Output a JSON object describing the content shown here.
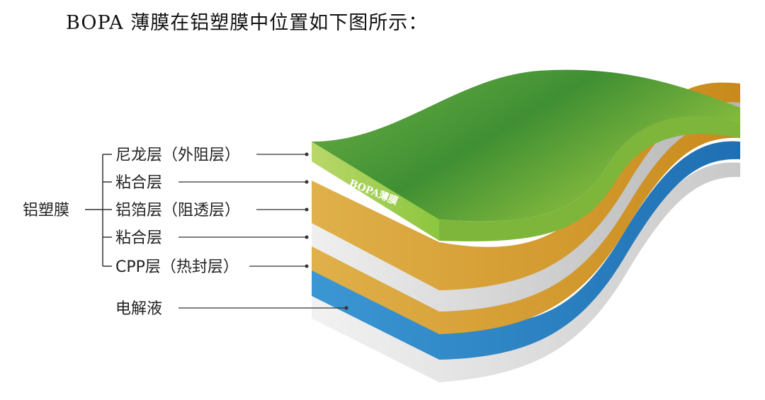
{
  "heading": "BOPA 薄膜在铝塑膜中位置如下图所示：",
  "group_label": "铝塑膜",
  "layers": [
    {
      "label": "尼龙层（外阻层）",
      "color": "#6aa83a"
    },
    {
      "label": "粘合层",
      "color": "#d19a2b"
    },
    {
      "label": "铝箔层（阻透层）",
      "color": "#c4c4c4"
    },
    {
      "label": "粘合层",
      "color": "#d19a2b"
    },
    {
      "label": "CPP层（热封层）",
      "color": "#2f86c4"
    }
  ],
  "electrolyte_label": "电解液",
  "film_label": "BOPA薄膜"
}
